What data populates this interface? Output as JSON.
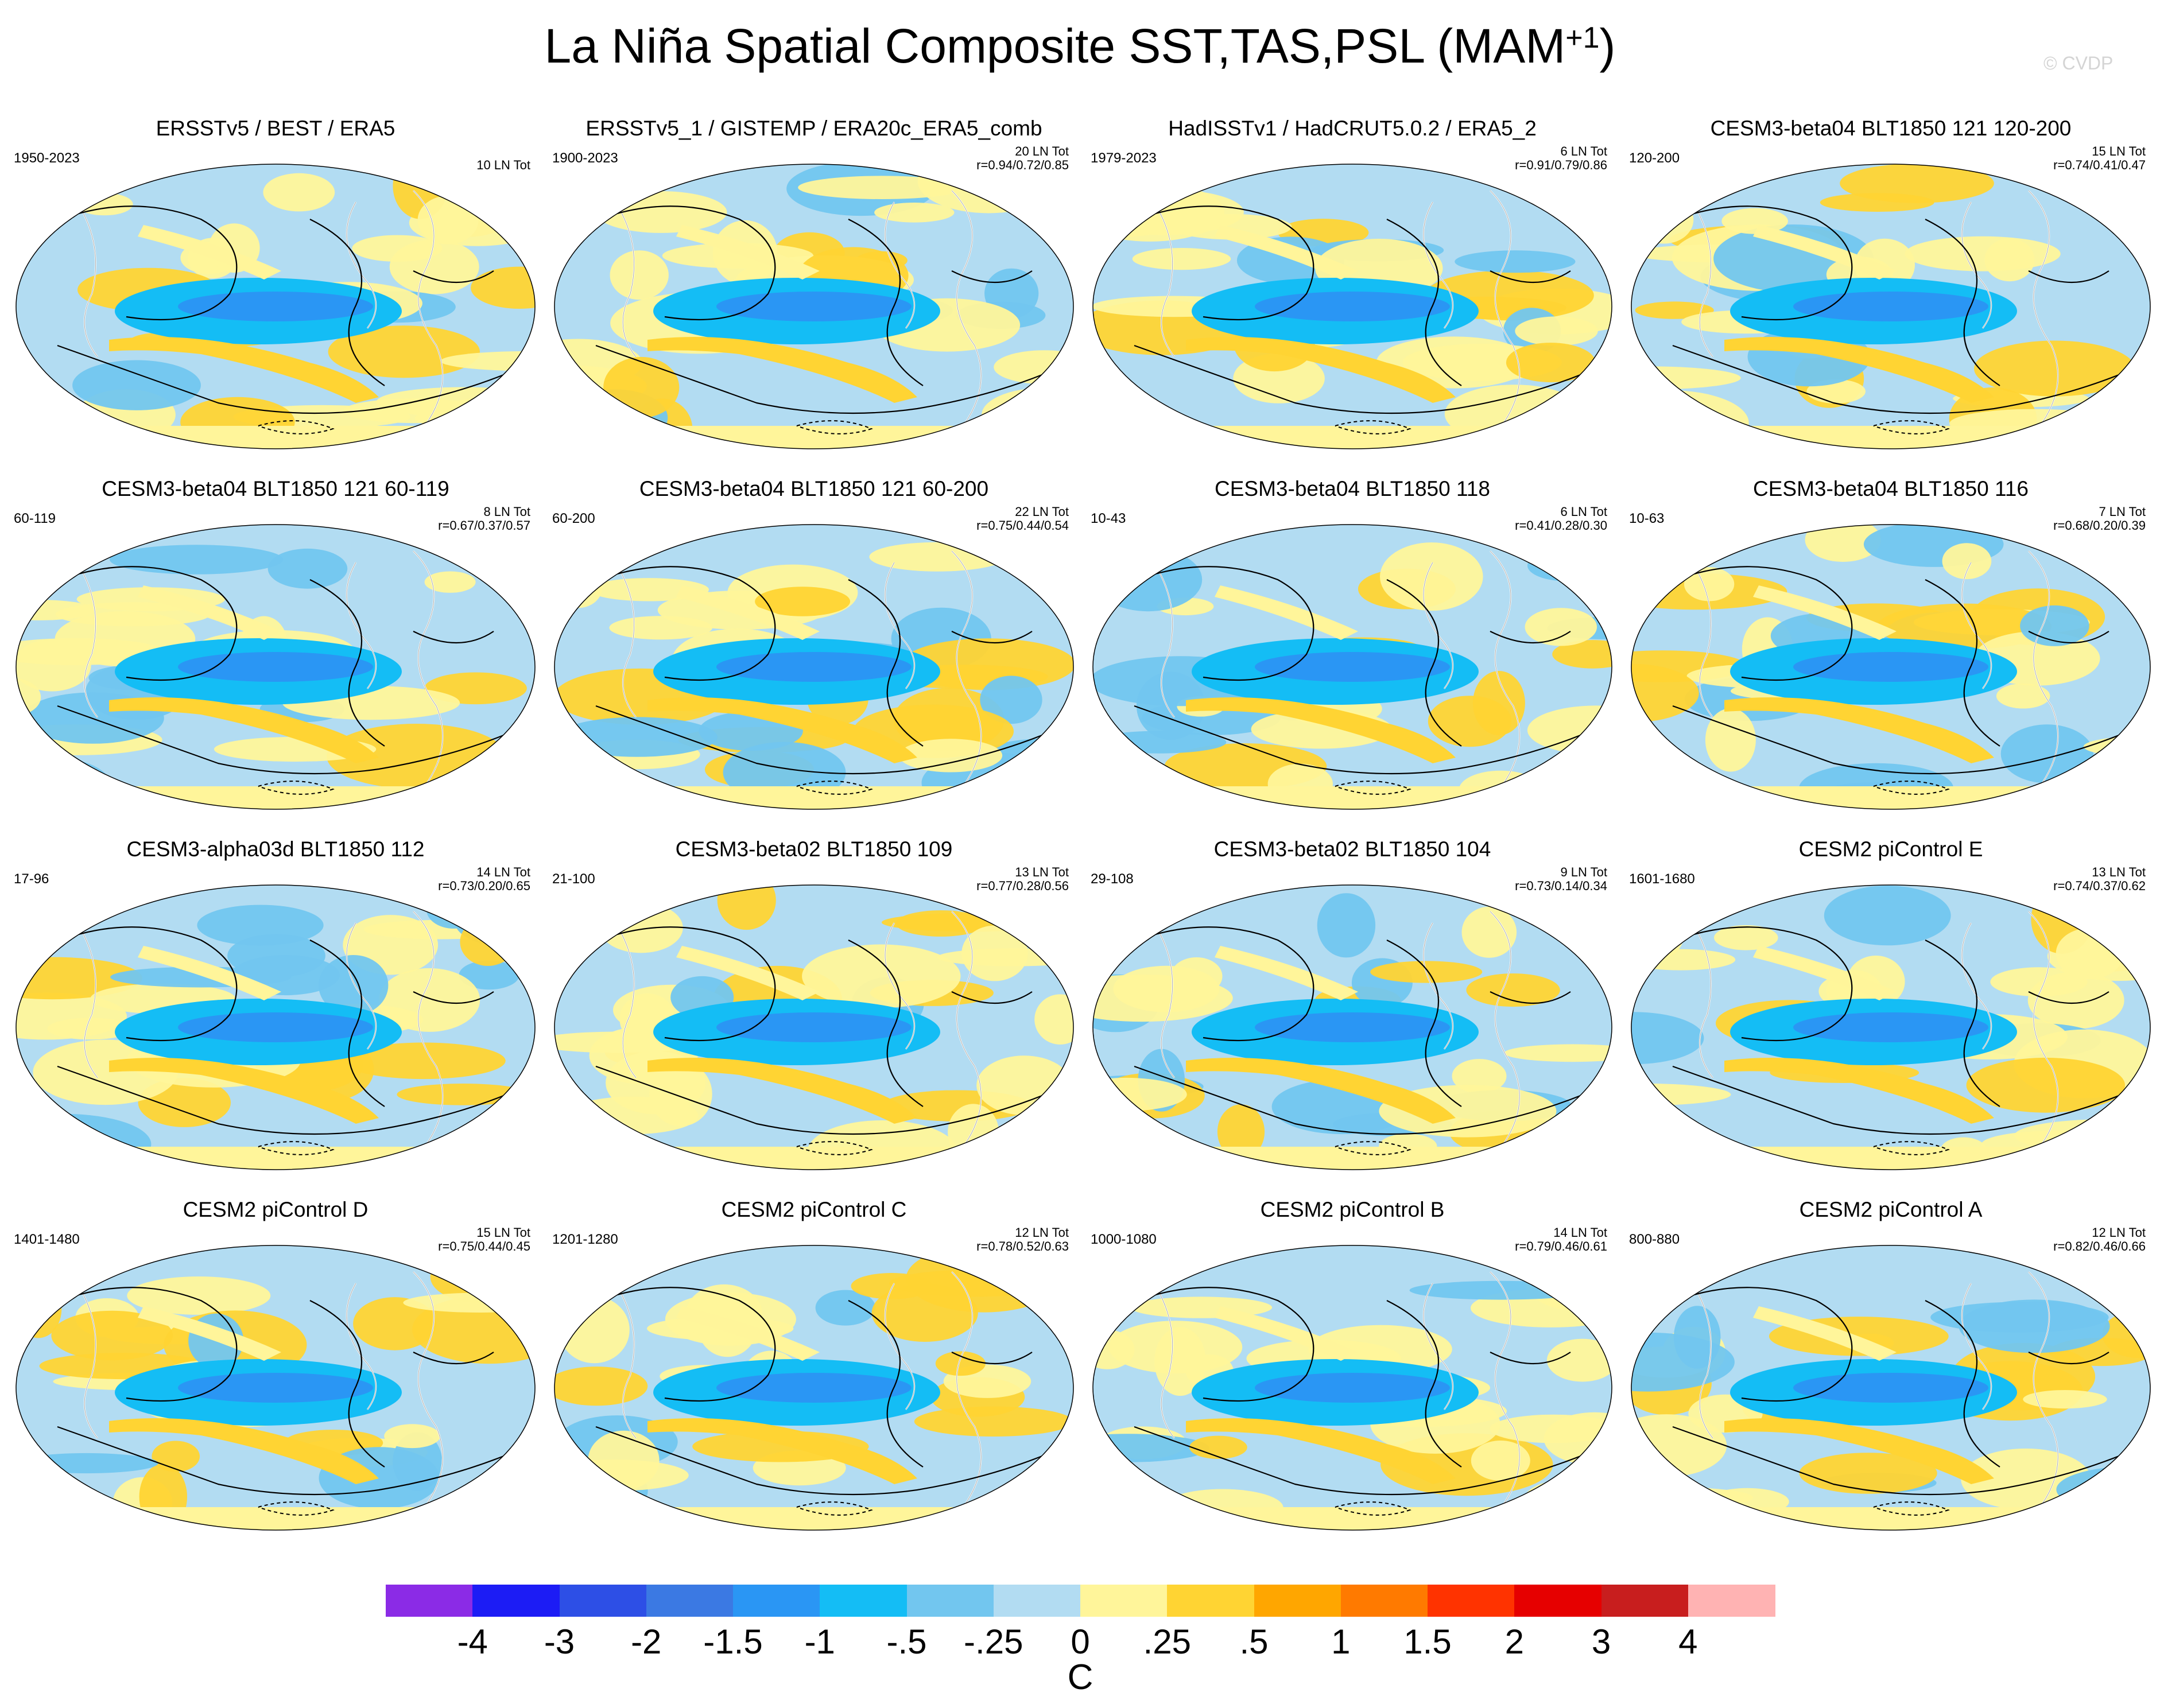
{
  "figure": {
    "title": "La Niña Spatial Composite SST,TAS,PSL (MAM",
    "title_superscript": "+1",
    "title_close": ")",
    "credit": "© CVDP",
    "units": "C"
  },
  "colors": {
    "background": "#ffffff",
    "ocean_base": "#b2d8ef",
    "contour_line": "#000000",
    "coastline": "#ffffff"
  },
  "panels": [
    {
      "title": "ERSSTv5 / BEST / ERA5",
      "period": "1950-2023",
      "count": "10 LN Tot",
      "corr": ""
    },
    {
      "title": "ERSSTv5_1 / GISTEMP / ERA20c_ERA5_comb",
      "period": "1900-2023",
      "count": "20 LN Tot",
      "corr": "r=0.94/0.72/0.85"
    },
    {
      "title": "HadISSTv1 / HadCRUT5.0.2 / ERA5_2",
      "period": "1979-2023",
      "count": "6 LN Tot",
      "corr": "r=0.91/0.79/0.86"
    },
    {
      "title": "CESM3-beta04 BLT1850 121 120-200",
      "period": "120-200",
      "count": "15 LN Tot",
      "corr": "r=0.74/0.41/0.47"
    },
    {
      "title": "CESM3-beta04 BLT1850 121 60-119",
      "period": "60-119",
      "count": "8 LN Tot",
      "corr": "r=0.67/0.37/0.57"
    },
    {
      "title": "CESM3-beta04 BLT1850 121 60-200",
      "period": "60-200",
      "count": "22 LN Tot",
      "corr": "r=0.75/0.44/0.54"
    },
    {
      "title": "CESM3-beta04 BLT1850 118",
      "period": "10-43",
      "count": "6 LN Tot",
      "corr": "r=0.41/0.28/0.30"
    },
    {
      "title": "CESM3-beta04 BLT1850 116",
      "period": "10-63",
      "count": "7 LN Tot",
      "corr": "r=0.68/0.20/0.39"
    },
    {
      "title": "CESM3-alpha03d BLT1850 112",
      "period": "17-96",
      "count": "14 LN Tot",
      "corr": "r=0.73/0.20/0.65"
    },
    {
      "title": "CESM3-beta02 BLT1850 109",
      "period": "21-100",
      "count": "13 LN Tot",
      "corr": "r=0.77/0.28/0.56"
    },
    {
      "title": "CESM3-beta02 BLT1850 104",
      "period": "29-108",
      "count": "9 LN Tot",
      "corr": "r=0.73/0.14/0.34"
    },
    {
      "title": "CESM2 piControl E",
      "period": "1601-1680",
      "count": "13 LN Tot",
      "corr": "r=0.74/0.37/0.62"
    },
    {
      "title": "CESM2 piControl D",
      "period": "1401-1480",
      "count": "15 LN Tot",
      "corr": "r=0.75/0.44/0.45"
    },
    {
      "title": "CESM2 piControl C",
      "period": "1201-1280",
      "count": "12 LN Tot",
      "corr": "r=0.78/0.52/0.63"
    },
    {
      "title": "CESM2 piControl B",
      "period": "1000-1080",
      "count": "14 LN Tot",
      "corr": "r=0.79/0.46/0.61"
    },
    {
      "title": "CESM2 piControl A",
      "period": "800-880",
      "count": "12 LN Tot",
      "corr": "r=0.82/0.46/0.66"
    }
  ],
  "colorbar": {
    "labels": [
      "-4",
      "-3",
      "-2",
      "-1.5",
      "-1",
      "-.5",
      "-.25",
      "0",
      ".25",
      ".5",
      "1",
      "1.5",
      "2",
      "3",
      "4"
    ],
    "colors": [
      "#8b2be6",
      "#1c1cf5",
      "#2d4fe6",
      "#3b79e3",
      "#2a96f4",
      "#14bdf5",
      "#72c6ef",
      "#b2dcf2",
      "#fff59a",
      "#ffd433",
      "#ffa600",
      "#ff7a00",
      "#ff3300",
      "#e60000",
      "#c81e1e",
      "#ffb3b3"
    ]
  }
}
